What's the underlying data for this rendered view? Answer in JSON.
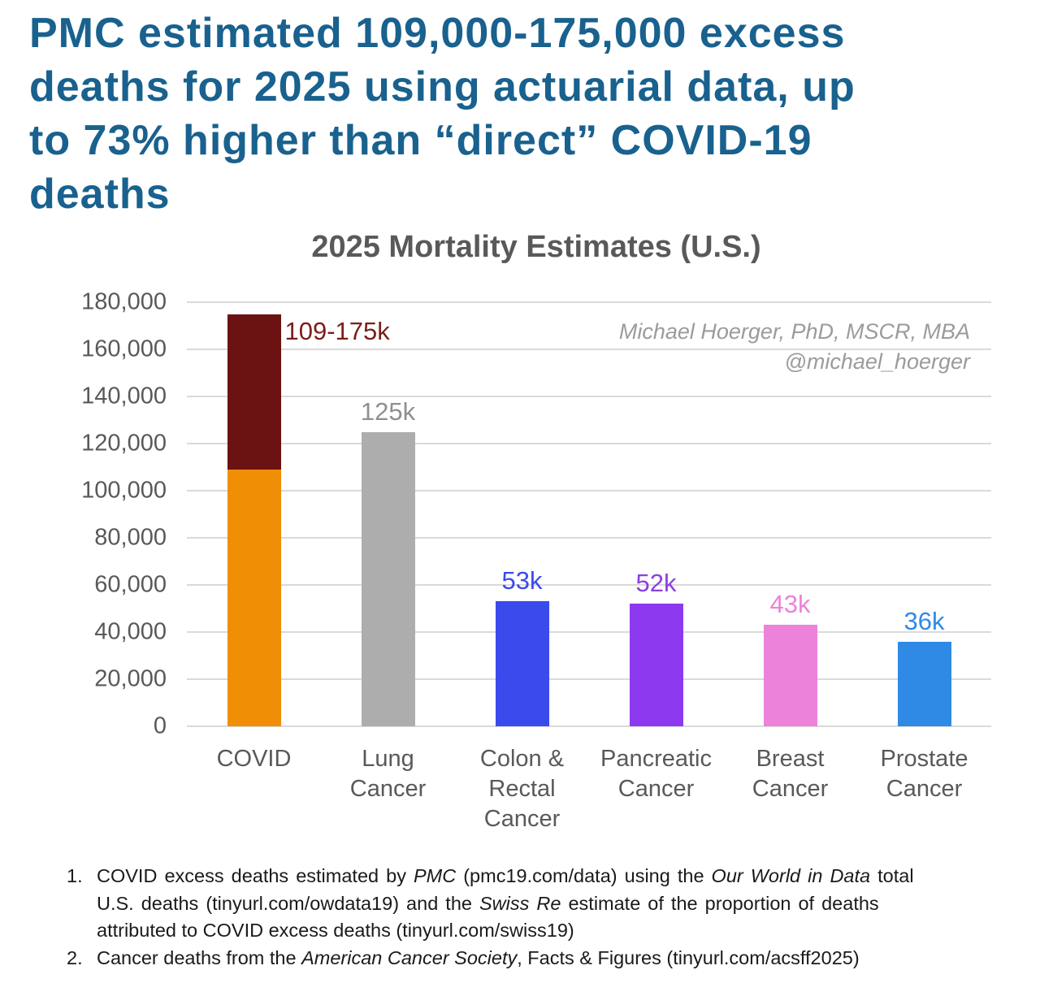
{
  "headline": {
    "lines": [
      "PMC estimated 109,000-175,000 excess",
      "deaths for 2025 using actuarial data, up",
      "to 73% higher than “direct” COVID-19",
      "deaths"
    ],
    "color": "#19618E"
  },
  "chart_data": {
    "type": "bar",
    "title": "2025 Mortality Estimates (U.S.)",
    "xlabel": "",
    "ylabel": "",
    "ylim": [
      0,
      180000
    ],
    "ytick_step": 20000,
    "grid": true,
    "legend": "none",
    "yticks": [
      {
        "value": 0,
        "label": "0"
      },
      {
        "value": 20000,
        "label": "20,000"
      },
      {
        "value": 40000,
        "label": "40,000"
      },
      {
        "value": 60000,
        "label": "60,000"
      },
      {
        "value": 80000,
        "label": "80,000"
      },
      {
        "value": 100000,
        "label": "100,000"
      },
      {
        "value": 120000,
        "label": "120,000"
      },
      {
        "value": 140000,
        "label": "140,000"
      },
      {
        "value": 160000,
        "label": "160,000"
      },
      {
        "value": 180000,
        "label": "180,000"
      }
    ],
    "bars": [
      {
        "id": "covid",
        "category_lines": [
          "COVID"
        ],
        "value_low": 109000,
        "value_high": 175000,
        "label": "109-175k",
        "label_position": "right",
        "label_color": "#7C1E1B",
        "segments": [
          {
            "name": "covid-lower-estimate",
            "value": 109000,
            "color": "#F08E05"
          },
          {
            "name": "covid-upper-range",
            "value": 66000,
            "color": "#6A1312"
          }
        ]
      },
      {
        "id": "lung-cancer",
        "category_lines": [
          "Lung",
          "Cancer"
        ],
        "value": 125000,
        "label": "125k",
        "label_position": "above",
        "label_color": "#8F8F8F",
        "segments": [
          {
            "name": "lung-cancer-deaths",
            "value": 125000,
            "color": "#ADADAD"
          }
        ]
      },
      {
        "id": "colon-rectal-cancer",
        "category_lines": [
          "Colon &",
          "Rectal",
          "Cancer"
        ],
        "value": 53000,
        "label": "53k",
        "label_position": "above",
        "label_color": "#3B4AEC",
        "segments": [
          {
            "name": "colon-rectal-cancer-deaths",
            "value": 53000,
            "color": "#3B4AEC"
          }
        ]
      },
      {
        "id": "pancreatic-cancer",
        "category_lines": [
          "Pancreatic",
          "Cancer"
        ],
        "value": 52000,
        "label": "52k",
        "label_position": "above",
        "label_color": "#8B40E0",
        "segments": [
          {
            "name": "pancreatic-cancer-deaths",
            "value": 52000,
            "color": "#8D39F0"
          }
        ]
      },
      {
        "id": "breast-cancer",
        "category_lines": [
          "Breast",
          "Cancer"
        ],
        "value": 43000,
        "label": "43k",
        "label_position": "above",
        "label_color": "#EC82DA",
        "segments": [
          {
            "name": "breast-cancer-deaths",
            "value": 43000,
            "color": "#EC82DA"
          }
        ]
      },
      {
        "id": "prostate-cancer",
        "category_lines": [
          "Prostate",
          "Cancer"
        ],
        "value": 36000,
        "label": "36k",
        "label_position": "above",
        "label_color": "#2F8AE5",
        "segments": [
          {
            "name": "prostate-cancer-deaths",
            "value": 36000,
            "color": "#2F8AE5"
          }
        ]
      }
    ],
    "annotations": {
      "attribution_lines": [
        "Michael Hoerger, PhD, MSCR, MBA",
        "@michael_hoerger"
      ]
    },
    "colors": {
      "gridline": "#DADADA",
      "axis_text": "#595959",
      "title_text": "#595959"
    }
  },
  "footnotes": [
    {
      "number": "1.",
      "lines": [
        [
          {
            "t": "COVID excess deaths estimated by "
          },
          {
            "t": "PMC",
            "i": true
          },
          {
            "t": " (pmc19.com/data) using the "
          },
          {
            "t": "Our World in Data",
            "i": true
          },
          {
            "t": " total"
          }
        ],
        [
          {
            "t": "U.S. deaths (tinyurl.com/owdata19) and the "
          },
          {
            "t": "Swiss Re",
            "i": true
          },
          {
            "t": " estimate of the proportion of deaths"
          }
        ],
        [
          {
            "t": "attributed to COVID excess deaths (tinyurl.com/swiss19)"
          }
        ]
      ]
    },
    {
      "number": "2.",
      "lines": [
        [
          {
            "t": "Cancer deaths from the "
          },
          {
            "t": "American Cancer Society",
            "i": true
          },
          {
            "t": ", Facts & Figures (tinyurl.com/acsff2025)"
          }
        ]
      ]
    }
  ]
}
